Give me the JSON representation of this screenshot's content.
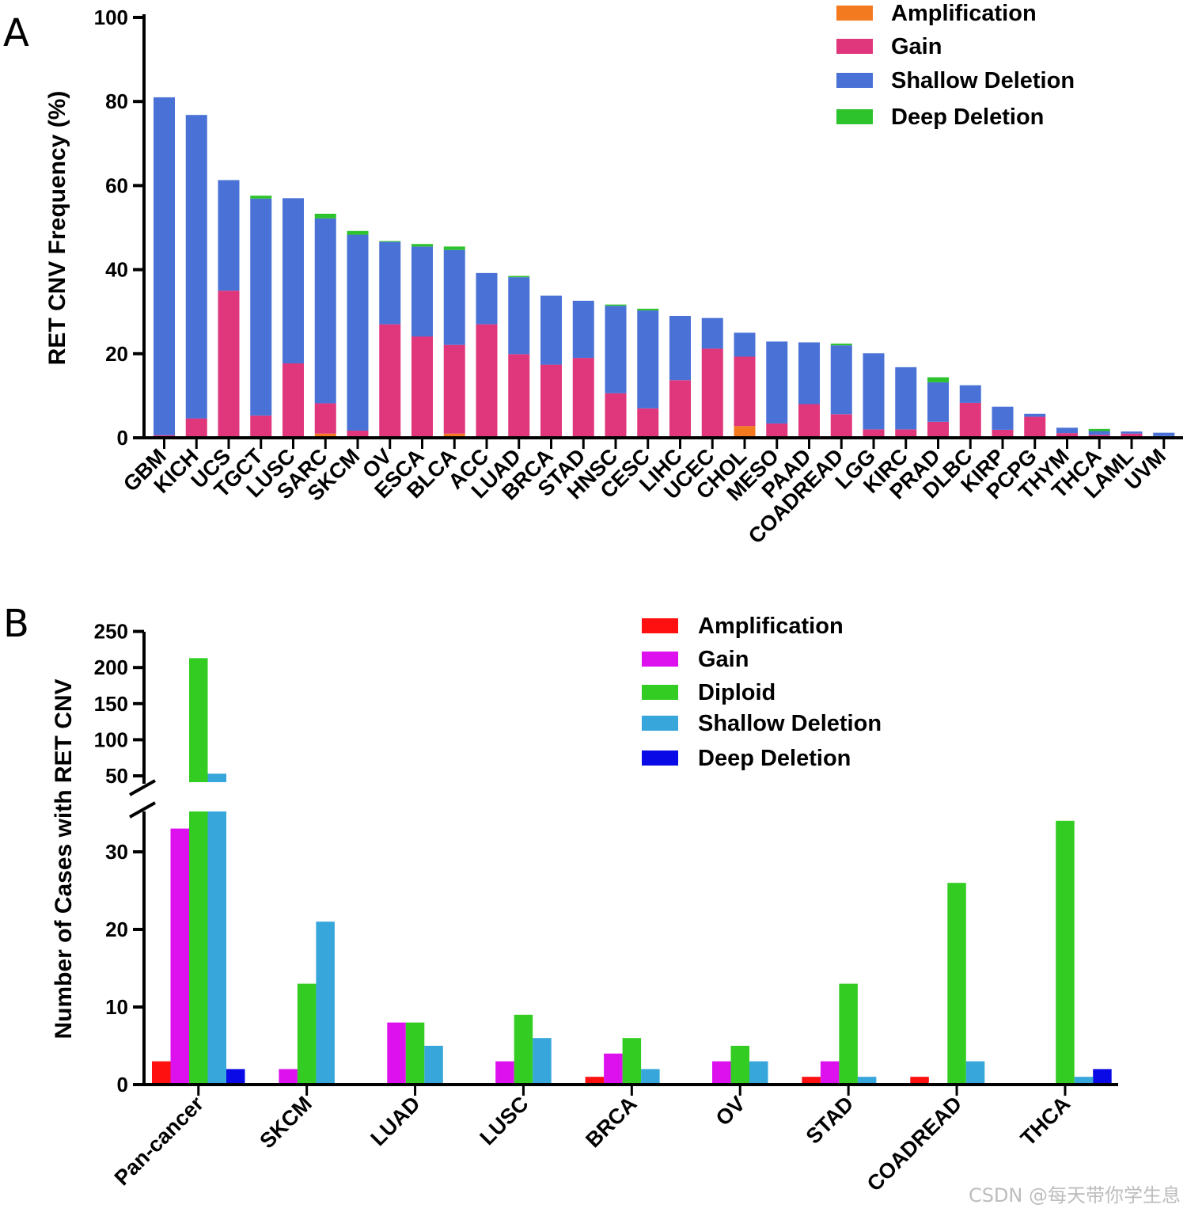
{
  "panel_a_label": "A",
  "panel_b_label": "B",
  "watermark": "CSDN @每天带你学生息",
  "chart_data": [
    {
      "type": "bar",
      "stacked": true,
      "panel": "A",
      "title": "",
      "xlabel": "",
      "ylabel": "RET CNV Frequency (%)",
      "ylim": [
        0,
        100
      ],
      "yticks": [
        0,
        20,
        40,
        60,
        80,
        100
      ],
      "legend_position": "top-right",
      "categories": [
        "GBM",
        "KICH",
        "UCS",
        "TGCT",
        "LUSC",
        "SARC",
        "SKCM",
        "OV",
        "ESCA",
        "BLCA",
        "ACC",
        "LUAD",
        "BRCA",
        "STAD",
        "HNSC",
        "CESC",
        "LIHC",
        "UCEC",
        "CHOL",
        "MESO",
        "PAAD",
        "COADREAD",
        "LGG",
        "KIRC",
        "PRAD",
        "DLBC",
        "KIRP",
        "PCPG",
        "THYM",
        "THCA",
        "LAML",
        "UVM"
      ],
      "series": [
        {
          "name": "Amplification",
          "color": "#f47a20",
          "values": [
            0,
            0,
            0,
            0,
            0,
            1,
            0,
            0,
            0,
            1,
            0,
            0,
            0,
            0,
            0,
            0,
            0,
            0,
            2.8,
            0,
            0,
            0,
            0,
            0,
            0,
            0,
            0,
            0,
            0,
            0,
            0,
            0
          ]
        },
        {
          "name": "Gain",
          "color": "#e0367c",
          "values": [
            0.6,
            4.6,
            35,
            5.3,
            17.7,
            7.2,
            1.7,
            27,
            24.1,
            21.1,
            27,
            19.9,
            17.4,
            19,
            10.6,
            7,
            13.7,
            21.2,
            16.5,
            3.4,
            8,
            5.6,
            2,
            2,
            3.8,
            8.3,
            1.9,
            5,
            1.1,
            0.7,
            1,
            0.4
          ]
        },
        {
          "name": "Shallow Deletion",
          "color": "#4a72d6",
          "values": [
            80.4,
            72.2,
            26.3,
            51.6,
            39.3,
            44,
            46.6,
            19.6,
            21.4,
            22.6,
            12.2,
            18.3,
            16.4,
            13.6,
            20.8,
            23.3,
            15.3,
            7.3,
            5.7,
            19.5,
            14.7,
            16.4,
            18.1,
            14.8,
            9.4,
            4.2,
            5.5,
            0.7,
            1.3,
            0.9,
            0.5,
            0.8
          ]
        },
        {
          "name": "Deep Deletion",
          "color": "#2dc32d",
          "values": [
            0,
            0,
            0,
            0.7,
            0,
            1.1,
            0.9,
            0.2,
            0.6,
            0.8,
            0,
            0.3,
            0,
            0,
            0.3,
            0.4,
            0,
            0,
            0,
            0,
            0,
            0.4,
            0,
            0,
            1.2,
            0,
            0,
            0,
            0,
            0.5,
            0,
            0
          ]
        }
      ]
    },
    {
      "type": "bar",
      "stacked": false,
      "panel": "B",
      "title": "",
      "xlabel": "",
      "ylabel": "Number of Cases with RET CNV",
      "axis_break": true,
      "ylim_lower": [
        0,
        35
      ],
      "yticks_lower": [
        0,
        10,
        20,
        30
      ],
      "ylim_upper": [
        40,
        250
      ],
      "yticks_upper": [
        50,
        100,
        150,
        200,
        250
      ],
      "legend_position": "top-right",
      "categories": [
        "Pan-cancer",
        "SKCM",
        "LUAD",
        "LUSC",
        "BRCA",
        "OV",
        "STAD",
        "COADREAD",
        "THCA"
      ],
      "series": [
        {
          "name": "Amplification",
          "color": "#ff1010",
          "values": [
            3,
            0,
            0,
            0,
            1,
            0,
            1,
            1,
            0
          ]
        },
        {
          "name": "Gain",
          "color": "#dd11ee",
          "values": [
            33,
            2,
            8,
            3,
            4,
            3,
            3,
            0,
            0
          ]
        },
        {
          "name": "Diploid",
          "color": "#33cc22",
          "values": [
            213,
            13,
            8,
            9,
            6,
            5,
            13,
            26,
            34
          ]
        },
        {
          "name": "Shallow Deletion",
          "color": "#36a6db",
          "values": [
            53,
            21,
            5,
            6,
            2,
            3,
            1,
            3,
            1
          ]
        },
        {
          "name": "Deep Deletion",
          "color": "#0a0ae6",
          "values": [
            2,
            0,
            0,
            0,
            0,
            0,
            0,
            0,
            2
          ]
        }
      ]
    }
  ]
}
